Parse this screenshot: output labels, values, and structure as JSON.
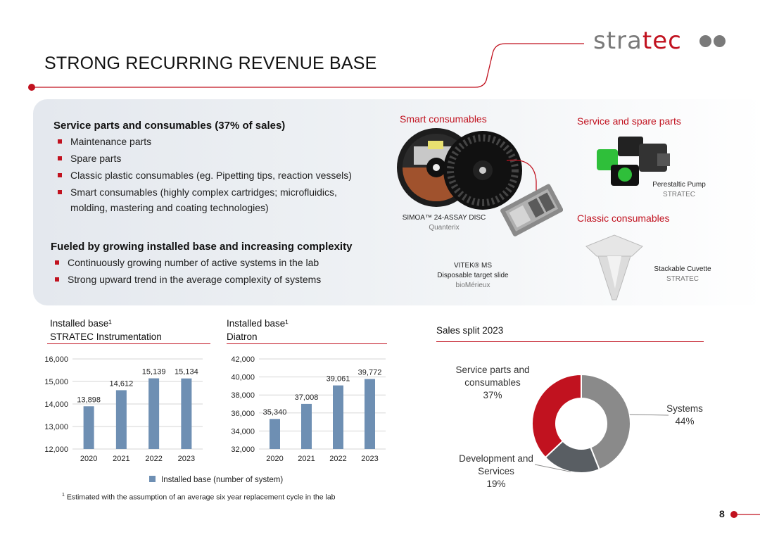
{
  "header": {
    "title": "STRONG RECURRING REVENUE BASE",
    "logo_text_gray": "stra",
    "logo_text_red": "tec"
  },
  "left_panel": {
    "section1_heading": "Service parts and consumables (37% of sales)",
    "section1_items": [
      "Maintenance parts",
      "Spare parts",
      "Classic plastic consumables (eg. Pipetting tips, reaction vessels)",
      "Smart consumables (highly complex cartridges; microfluidics, molding, mastering and coating technologies)"
    ],
    "section2_heading": "Fueled by growing installed base and increasing complexity",
    "section2_items": [
      "Continuously growing number of active systems in the lab",
      "Strong upward trend in the average complexity of systems"
    ]
  },
  "products": {
    "smart_heading": "Smart consumables",
    "service_heading": "Service and spare parts",
    "classic_heading": "Classic consumables",
    "simoa_name": "SIMOA™ 24-ASSAY DISC",
    "simoa_sub": "Quanterix",
    "vitek_name1": "VITEK® MS",
    "vitek_name2": "Disposable target slide",
    "vitek_sub": "bioMérieux",
    "pump_name": "Perestaltic Pump",
    "pump_sub": "STRATEC",
    "cuvette_name": "Stackable Cuvette",
    "cuvette_sub": "STRATEC"
  },
  "colors": {
    "brand_red": "#c1121f",
    "bar_blue": "#6e8fb3",
    "donut_gray": "#8a8a8a",
    "donut_dark": "#595e63"
  },
  "chart_data": [
    {
      "type": "bar",
      "title": "Installed base¹",
      "subtitle": "STRATEC Instrumentation",
      "categories": [
        "2020",
        "2021",
        "2022",
        "2023"
      ],
      "values": [
        13898,
        14612,
        15139,
        15134
      ],
      "value_labels": [
        "13,898",
        "14,612",
        "15,139",
        "15,134"
      ],
      "ylim": [
        12000,
        16000
      ],
      "yticks": [
        12000,
        13000,
        14000,
        15000,
        16000
      ],
      "ytick_labels": [
        "12,000",
        "13,000",
        "14,000",
        "15,000",
        "16,000"
      ],
      "grid": true
    },
    {
      "type": "bar",
      "title": "Installed base¹",
      "subtitle": "Diatron",
      "categories": [
        "2020",
        "2021",
        "2022",
        "2023"
      ],
      "values": [
        35340,
        37008,
        39061,
        39772
      ],
      "value_labels": [
        "35,340",
        "37,008",
        "39,061",
        "39,772"
      ],
      "ylim": [
        32000,
        42000
      ],
      "yticks": [
        32000,
        34000,
        36000,
        38000,
        40000,
        42000
      ],
      "ytick_labels": [
        "32,000",
        "34,000",
        "36,000",
        "38,000",
        "40,000",
        "42,000"
      ],
      "grid": true
    },
    {
      "type": "pie",
      "title": "Sales split 2023",
      "donut": true,
      "slices": [
        {
          "name": "Systems",
          "value": 44,
          "label": "44%"
        },
        {
          "name": "Development and Services",
          "value": 19,
          "label": "19%"
        },
        {
          "name": "Service parts and consumables",
          "value": 37,
          "label": "37%"
        }
      ]
    }
  ],
  "legend": {
    "label": "Installed base (number of system)"
  },
  "footnote": {
    "mark": "1",
    "text": "Estimated with the assumption of an average six year replacement cycle in the lab"
  },
  "page": {
    "number": "8"
  }
}
